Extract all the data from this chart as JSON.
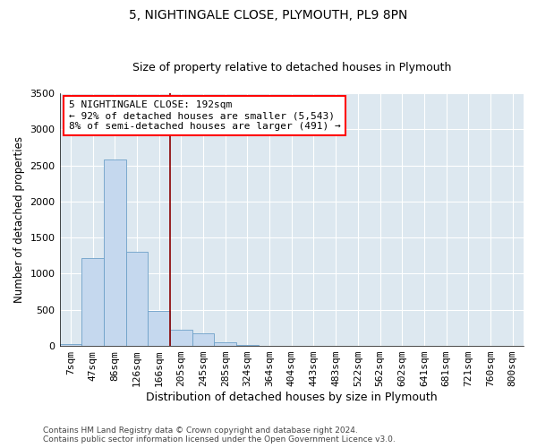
{
  "title1": "5, NIGHTINGALE CLOSE, PLYMOUTH, PL9 8PN",
  "title2": "Size of property relative to detached houses in Plymouth",
  "xlabel": "Distribution of detached houses by size in Plymouth",
  "ylabel": "Number of detached properties",
  "categories": [
    "7sqm",
    "47sqm",
    "86sqm",
    "126sqm",
    "166sqm",
    "205sqm",
    "245sqm",
    "285sqm",
    "324sqm",
    "364sqm",
    "404sqm",
    "443sqm",
    "483sqm",
    "522sqm",
    "562sqm",
    "602sqm",
    "641sqm",
    "681sqm",
    "721sqm",
    "760sqm",
    "800sqm"
  ],
  "values": [
    30,
    1220,
    2580,
    1310,
    490,
    220,
    175,
    50,
    15,
    0,
    0,
    0,
    0,
    0,
    0,
    0,
    0,
    0,
    0,
    0,
    0
  ],
  "bar_color": "#c5d8ee",
  "bar_edge_color": "#6da0c8",
  "annotation_text": "5 NIGHTINGALE CLOSE: 192sqm\n← 92% of detached houses are smaller (5,543)\n8% of semi-detached houses are larger (491) →",
  "annotation_box_color": "white",
  "annotation_box_edge_color": "red",
  "vline_color": "darkred",
  "vline_x": 4.5,
  "ylim": [
    0,
    3500
  ],
  "yticks": [
    0,
    500,
    1000,
    1500,
    2000,
    2500,
    3000,
    3500
  ],
  "background_color": "#dde8f0",
  "grid_color": "#ffffff",
  "footer_text": "Contains HM Land Registry data © Crown copyright and database right 2024.\nContains public sector information licensed under the Open Government Licence v3.0.",
  "title1_fontsize": 10,
  "title2_fontsize": 9,
  "xlabel_fontsize": 9,
  "ylabel_fontsize": 8.5,
  "tick_fontsize": 8,
  "annotation_fontsize": 8
}
